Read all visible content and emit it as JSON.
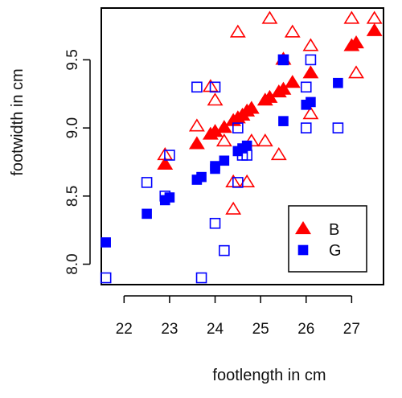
{
  "chart_data": {
    "type": "scatter",
    "title": "",
    "xlabel": "footlength in cm",
    "ylabel": "footwidth in cm",
    "xlim": [
      21.5,
      27.7
    ],
    "ylim": [
      7.85,
      9.88
    ],
    "xticks": [
      22,
      23,
      24,
      25,
      26,
      27
    ],
    "yticks": [
      8.0,
      8.5,
      9.0,
      9.5
    ],
    "xtick_labels": [
      "22",
      "23",
      "24",
      "25",
      "26",
      "27"
    ],
    "ytick_labels": [
      "8.0",
      "8.5",
      "9.0",
      "9.5"
    ],
    "grid": false,
    "legend_position": "bottom-right",
    "series": [
      {
        "name": "B",
        "marker": "triangle",
        "color": "#ff0000",
        "filled": [
          [
            22.9,
            8.73
          ],
          [
            23.6,
            8.88
          ],
          [
            23.9,
            8.95
          ],
          [
            24.0,
            8.97
          ],
          [
            24.2,
            9.0
          ],
          [
            24.4,
            9.05
          ],
          [
            24.5,
            9.07
          ],
          [
            24.6,
            9.09
          ],
          [
            24.7,
            9.12
          ],
          [
            24.8,
            9.14
          ],
          [
            25.1,
            9.2
          ],
          [
            25.2,
            9.22
          ],
          [
            25.4,
            9.26
          ],
          [
            25.5,
            9.28
          ],
          [
            25.7,
            9.33
          ],
          [
            25.5,
            9.5
          ],
          [
            26.1,
            9.4
          ],
          [
            27.0,
            9.6
          ],
          [
            27.1,
            9.62
          ],
          [
            27.5,
            9.71
          ]
        ],
        "open": [
          [
            22.9,
            8.8
          ],
          [
            23.6,
            9.01
          ],
          [
            23.9,
            9.3
          ],
          [
            24.0,
            9.2
          ],
          [
            24.2,
            8.9
          ],
          [
            24.4,
            8.6
          ],
          [
            24.4,
            8.4
          ],
          [
            24.5,
            9.7
          ],
          [
            24.7,
            8.6
          ],
          [
            24.8,
            8.9
          ],
          [
            25.1,
            8.9
          ],
          [
            25.2,
            9.8
          ],
          [
            25.4,
            8.8
          ],
          [
            25.5,
            9.5
          ],
          [
            25.7,
            9.7
          ],
          [
            26.1,
            9.6
          ],
          [
            26.1,
            9.1
          ],
          [
            27.0,
            9.8
          ],
          [
            27.1,
            9.4
          ],
          [
            27.5,
            9.8
          ]
        ]
      },
      {
        "name": "G",
        "marker": "square",
        "color": "#0000ff",
        "filled": [
          [
            21.6,
            8.16
          ],
          [
            22.5,
            8.37
          ],
          [
            22.9,
            8.47
          ],
          [
            23.0,
            8.49
          ],
          [
            23.6,
            8.62
          ],
          [
            23.7,
            8.64
          ],
          [
            24.0,
            8.7
          ],
          [
            24.0,
            8.72
          ],
          [
            24.2,
            8.76
          ],
          [
            24.5,
            8.83
          ],
          [
            24.6,
            8.85
          ],
          [
            24.7,
            8.87
          ],
          [
            25.5,
            9.05
          ],
          [
            26.0,
            9.17
          ],
          [
            26.1,
            9.19
          ],
          [
            25.5,
            9.5
          ],
          [
            26.7,
            9.33
          ]
        ],
        "open": [
          [
            21.6,
            7.9
          ],
          [
            22.5,
            8.6
          ],
          [
            22.9,
            8.5
          ],
          [
            23.0,
            8.8
          ],
          [
            23.6,
            9.3
          ],
          [
            23.7,
            7.9
          ],
          [
            24.0,
            9.3
          ],
          [
            24.0,
            8.3
          ],
          [
            24.2,
            8.1
          ],
          [
            24.5,
            9.0
          ],
          [
            24.5,
            8.6
          ],
          [
            24.6,
            8.8
          ],
          [
            24.7,
            8.8
          ],
          [
            25.5,
            9.5
          ],
          [
            26.0,
            9.3
          ],
          [
            26.0,
            9.0
          ],
          [
            26.1,
            9.5
          ],
          [
            26.7,
            9.0
          ]
        ]
      }
    ]
  }
}
